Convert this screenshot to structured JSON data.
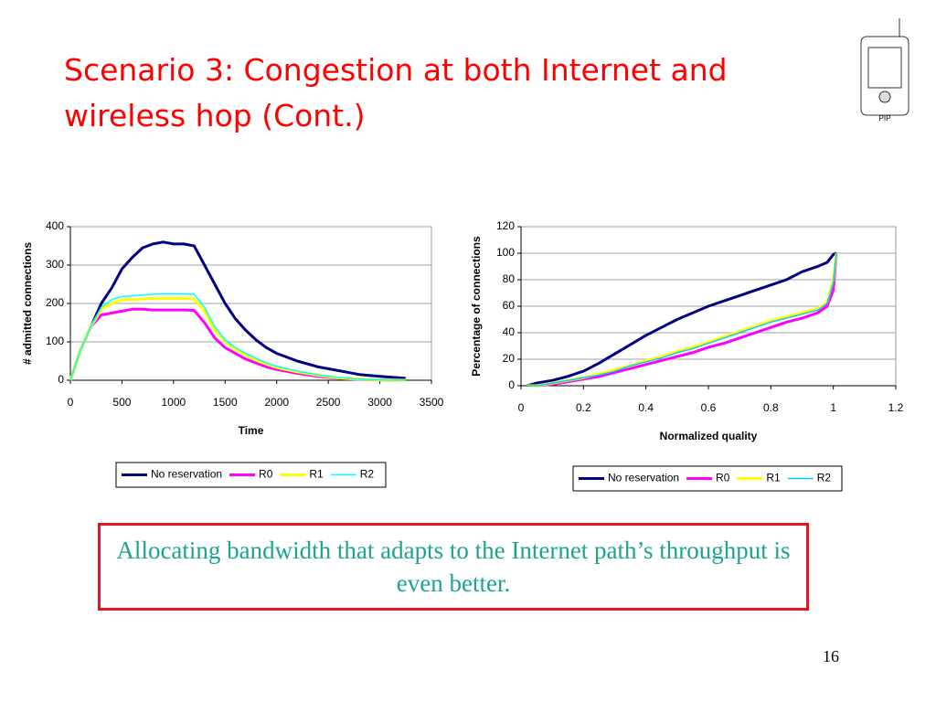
{
  "title": "Scenario 3: Congestion at both Internet and wireless hop (Cont.)",
  "icon_label": "PIP",
  "chart_data": [
    {
      "type": "line",
      "xlabel": "Time",
      "ylabel": "# admitted connections",
      "x": [
        0,
        100,
        200,
        300,
        400,
        500,
        600,
        700,
        800,
        900,
        1000,
        1100,
        1200,
        1300,
        1400,
        1500,
        1600,
        1700,
        1800,
        1900,
        2000,
        2200,
        2400,
        2600,
        2800,
        3000,
        3250
      ],
      "series": [
        {
          "name": "No reservation",
          "color": "#000080",
          "values": [
            0,
            80,
            140,
            200,
            240,
            290,
            320,
            345,
            355,
            360,
            355,
            355,
            350,
            300,
            250,
            200,
            160,
            130,
            105,
            85,
            70,
            50,
            35,
            25,
            15,
            10,
            5
          ]
        },
        {
          "name": "R0",
          "color": "#ff00ff",
          "values": [
            0,
            80,
            140,
            170,
            175,
            180,
            185,
            185,
            183,
            183,
            183,
            183,
            182,
            150,
            110,
            85,
            70,
            55,
            45,
            35,
            28,
            18,
            10,
            5,
            2,
            1,
            0
          ]
        },
        {
          "name": "R1",
          "color": "#ffff00",
          "values": [
            0,
            80,
            140,
            185,
            200,
            210,
            210,
            212,
            213,
            213,
            213,
            213,
            212,
            180,
            130,
            100,
            80,
            65,
            52,
            42,
            33,
            22,
            13,
            6,
            3,
            1,
            0
          ]
        },
        {
          "name": "R2",
          "color": "#00ffff",
          "values": [
            0,
            80,
            140,
            190,
            210,
            218,
            220,
            222,
            224,
            225,
            225,
            225,
            224,
            190,
            140,
            105,
            85,
            70,
            57,
            45,
            36,
            24,
            14,
            7,
            3,
            1,
            0
          ]
        }
      ],
      "xlim": [
        0,
        3500
      ],
      "xticks": [
        0,
        500,
        1000,
        1500,
        2000,
        2500,
        3000,
        3500
      ],
      "ylim": [
        0,
        400
      ],
      "yticks": [
        0,
        100,
        200,
        300,
        400
      ],
      "grid": true,
      "legend": "bottom"
    },
    {
      "type": "line",
      "xlabel": "Normalized quality",
      "ylabel": "Percentage of connections",
      "x": [
        0.02,
        0.05,
        0.1,
        0.15,
        0.2,
        0.25,
        0.3,
        0.35,
        0.4,
        0.45,
        0.5,
        0.55,
        0.6,
        0.65,
        0.7,
        0.75,
        0.8,
        0.85,
        0.9,
        0.95,
        0.98,
        1,
        1.01
      ],
      "series": [
        {
          "name": "No reservation",
          "color": "#000080",
          "values": [
            0,
            2,
            4,
            7,
            11,
            17,
            24,
            31,
            38,
            44,
            50,
            55,
            60,
            64,
            68,
            72,
            76,
            80,
            86,
            90,
            93,
            99,
            100
          ]
        },
        {
          "name": "R0",
          "color": "#ff00ff",
          "values": [
            0,
            0,
            1,
            3,
            5,
            7,
            10,
            13,
            16,
            19,
            22,
            25,
            29,
            32,
            36,
            40,
            44,
            48,
            51,
            55,
            60,
            72,
            100
          ]
        },
        {
          "name": "R1",
          "color": "#ffff00",
          "values": [
            0,
            0,
            2,
            4,
            6,
            9,
            12,
            15,
            19,
            22,
            26,
            29,
            33,
            37,
            41,
            45,
            49,
            52,
            55,
            58,
            63,
            80,
            100
          ]
        },
        {
          "name": "R2",
          "color": "#00ccff",
          "values": [
            0,
            0,
            2,
            4,
            6,
            8,
            11,
            15,
            18,
            21,
            25,
            28,
            32,
            36,
            40,
            44,
            48,
            51,
            54,
            57,
            62,
            78,
            100
          ]
        }
      ],
      "xlim": [
        0,
        1.2
      ],
      "xticks": [
        0,
        0.2,
        0.4,
        0.6,
        0.8,
        1,
        1.2
      ],
      "ylim": [
        0,
        120
      ],
      "yticks": [
        0,
        20,
        40,
        60,
        80,
        100,
        120
      ],
      "grid": true,
      "legend": "bottom"
    }
  ],
  "caption": "Allocating bandwidth that adapts to the Internet path’s throughput is even better.",
  "page_number": "16"
}
